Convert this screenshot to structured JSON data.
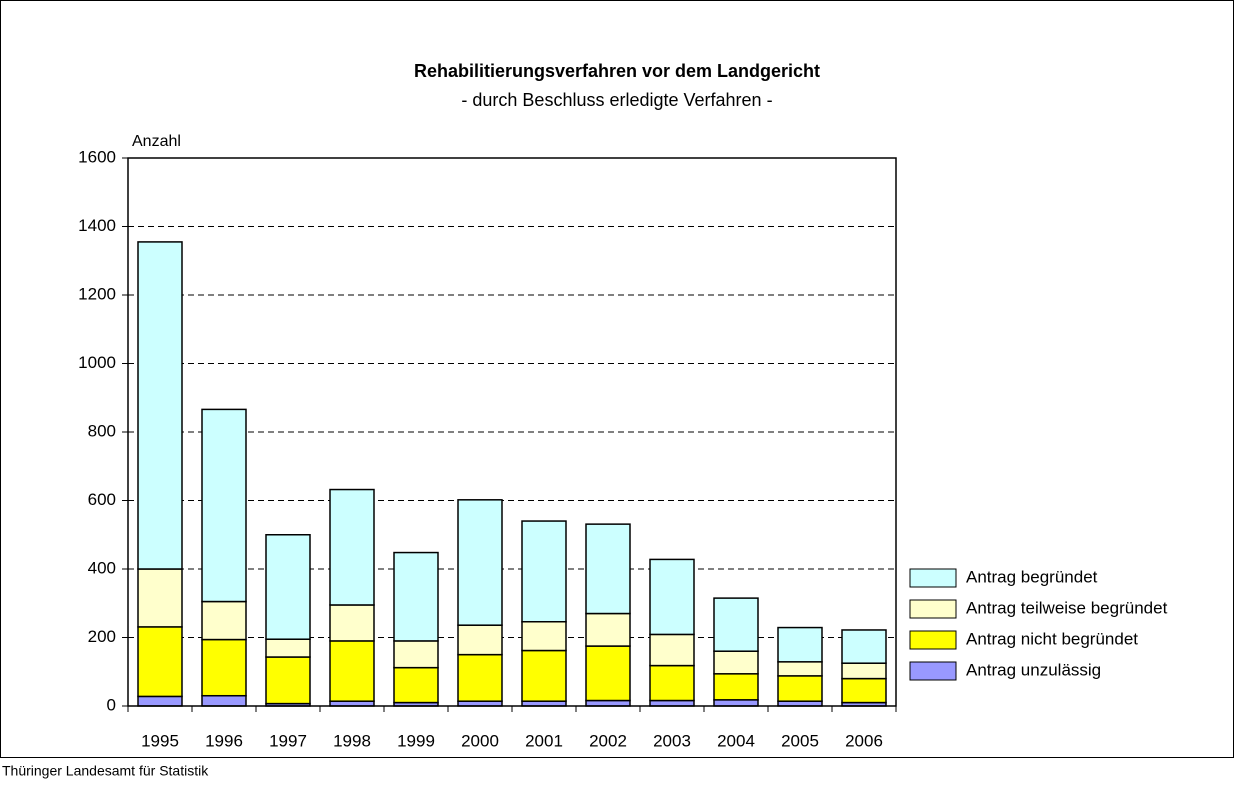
{
  "chart_data": {
    "type": "stacked_bar",
    "title": "Rehabilitierungsverfahren vor dem Landgericht",
    "subtitle": "- durch Beschluss erledigte Verfahren -",
    "y_label": "Anzahl",
    "source": "Thüringer Landesamt für Statistik",
    "categories": [
      "1995",
      "1996",
      "1997",
      "1998",
      "1999",
      "2000",
      "2001",
      "2002",
      "2003",
      "2004",
      "2005",
      "2006"
    ],
    "series": [
      {
        "name": "Antrag unzulässig",
        "color": "#9999ff",
        "values": [
          28,
          30,
          7,
          14,
          10,
          14,
          14,
          16,
          16,
          18,
          14,
          10
        ]
      },
      {
        "name": "Antrag nicht begründet",
        "color": "#ffff00",
        "values": [
          203,
          164,
          136,
          176,
          102,
          136,
          148,
          159,
          102,
          76,
          74,
          70
        ]
      },
      {
        "name": "Antrag teilweise begründet",
        "color": "#ffffcc",
        "values": [
          169,
          111,
          52,
          105,
          78,
          86,
          84,
          95,
          91,
          66,
          41,
          45
        ]
      },
      {
        "name": "Antrag begründet",
        "color": "#ccffff",
        "values": [
          955,
          561,
          305,
          337,
          258,
          366,
          294,
          261,
          219,
          155,
          100,
          97
        ]
      }
    ],
    "ylim": [
      0,
      1600
    ],
    "yticks": [
      0,
      200,
      400,
      600,
      800,
      1000,
      1200,
      1400,
      1600
    ],
    "grid": true,
    "legend": "right"
  }
}
